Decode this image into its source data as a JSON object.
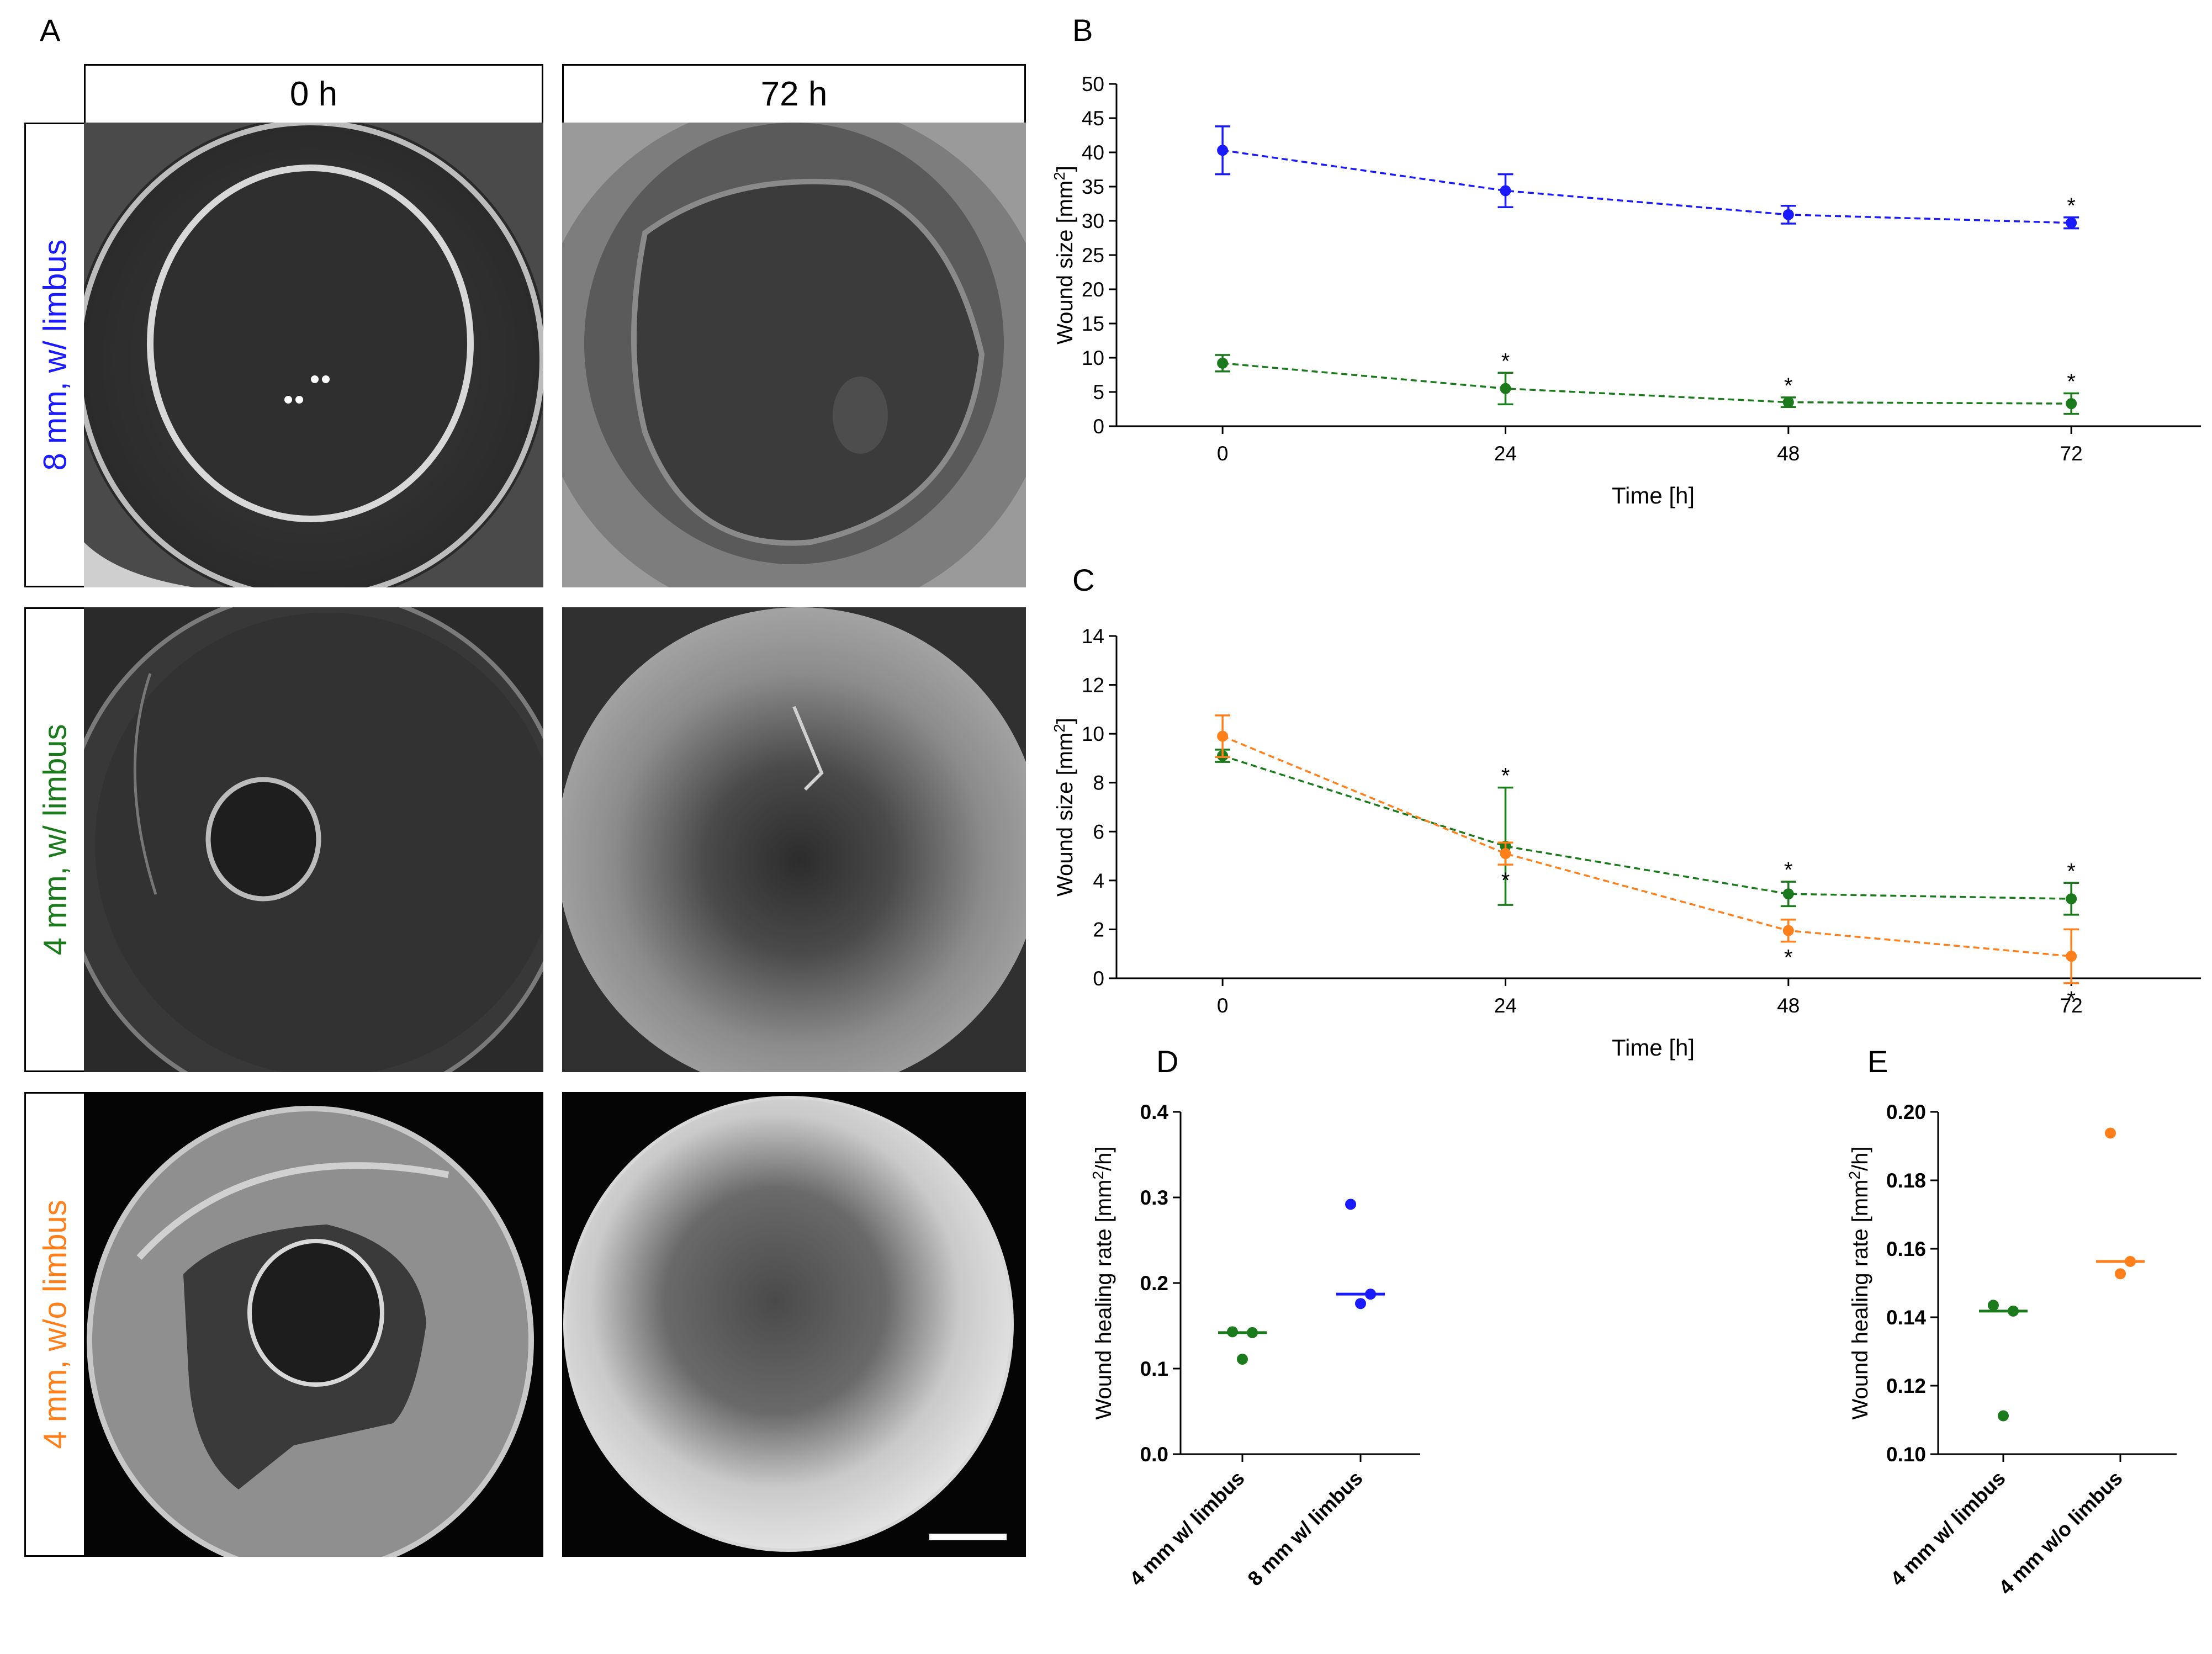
{
  "panels": {
    "A": "A",
    "B": "B",
    "C": "C",
    "D": "D",
    "E": "E"
  },
  "panel_a": {
    "columns": [
      "0 h",
      "72 h"
    ],
    "rows": [
      {
        "label": "8 mm, w/ limbus",
        "color": "#1a1aff"
      },
      {
        "label": "4 mm, w/ limbus",
        "color": "#1b7a1b"
      },
      {
        "label": "4 mm, w/o limbus",
        "color": "#ff7f1a"
      }
    ]
  },
  "chart_data": [
    {
      "id": "B",
      "type": "line",
      "xlabel": "Time [h]",
      "ylabel_main": "Wound size [mm",
      "ylabel_sup": "2",
      "ylabel_end": "]",
      "x": [
        0,
        24,
        48,
        72
      ],
      "xlim": [
        -9,
        83
      ],
      "ylim": [
        0,
        50
      ],
      "yticks": [
        0,
        5,
        10,
        15,
        20,
        25,
        30,
        35,
        40,
        45,
        50
      ],
      "star": "*",
      "series": [
        {
          "name": "8 mm, w/ limbus",
          "color": "#1a1aff",
          "values": [
            40.3,
            34.4,
            30.9,
            29.7
          ],
          "err": [
            3.5,
            2.4,
            1.3,
            0.8
          ],
          "stars": [
            {
              "i": 3,
              "pos": "above"
            }
          ]
        },
        {
          "name": "4 mm, w/ limbus",
          "color": "#1b7a1b",
          "values": [
            9.2,
            5.5,
            3.5,
            3.3
          ],
          "err": [
            1.2,
            2.3,
            0.7,
            1.5
          ],
          "stars": [
            {
              "i": 1,
              "pos": "above"
            },
            {
              "i": 2,
              "pos": "above"
            },
            {
              "i": 3,
              "pos": "above"
            }
          ]
        }
      ]
    },
    {
      "id": "C",
      "type": "line",
      "xlabel": "Time [h]",
      "ylabel_main": "Wound size [mm",
      "ylabel_sup": "2",
      "ylabel_end": "]",
      "x": [
        0,
        24,
        48,
        72
      ],
      "xlim": [
        -9,
        83
      ],
      "ylim": [
        0,
        14
      ],
      "yticks": [
        0,
        2,
        4,
        6,
        8,
        10,
        12,
        14
      ],
      "star": "*",
      "series": [
        {
          "name": "4 mm, w/ limbus",
          "color": "#1b7a1b",
          "values": [
            9.1,
            5.4,
            3.45,
            3.25
          ],
          "err": [
            0.25,
            2.4,
            0.5,
            0.65
          ],
          "stars": [
            {
              "i": 1,
              "pos": "above"
            },
            {
              "i": 2,
              "pos": "above"
            },
            {
              "i": 3,
              "pos": "above"
            }
          ]
        },
        {
          "name": "4 mm, w/o limbus",
          "color": "#ff7f1a",
          "values": [
            9.9,
            5.1,
            1.95,
            0.9
          ],
          "err": [
            0.85,
            0.45,
            0.45,
            1.1
          ],
          "stars": [
            {
              "i": 1,
              "pos": "below"
            },
            {
              "i": 2,
              "pos": "below"
            },
            {
              "i": 3,
              "pos": "below"
            }
          ]
        }
      ]
    },
    {
      "id": "D",
      "type": "scatter",
      "ylabel_main": "Wound healing rate [mm",
      "ylabel_sup": "2",
      "ylabel_end": "/h]",
      "ylim": [
        0,
        0.4
      ],
      "yticks": [
        "0.0",
        "0.1",
        "0.2",
        "0.3",
        "0.4"
      ],
      "categories": [
        "4 mm w/ limbus",
        "8 mm w/ limbus"
      ],
      "groups": [
        {
          "color": "#1b7a1b",
          "points": [
            0.143,
            0.142,
            0.111
          ],
          "median": 0.142
        },
        {
          "color": "#1a1aff",
          "points": [
            0.292,
            0.187,
            0.176
          ],
          "median": 0.187
        }
      ]
    },
    {
      "id": "E",
      "type": "scatter",
      "ylabel_main": "Wound healing rate [mm",
      "ylabel_sup": "2",
      "ylabel_end": "/h]",
      "ylim": [
        0.1,
        0.2
      ],
      "yticks": [
        "0.10",
        "0.12",
        "0.14",
        "0.16",
        "0.18",
        "0.20"
      ],
      "categories": [
        "4 mm w/ limbus",
        "4 mm w/o limbus"
      ],
      "groups": [
        {
          "color": "#1b7a1b",
          "points": [
            0.1435,
            0.1418,
            0.1112
          ],
          "median": 0.1418
        },
        {
          "color": "#ff7f1a",
          "points": [
            0.1938,
            0.1563,
            0.1527
          ],
          "median": 0.1563
        }
      ]
    }
  ]
}
